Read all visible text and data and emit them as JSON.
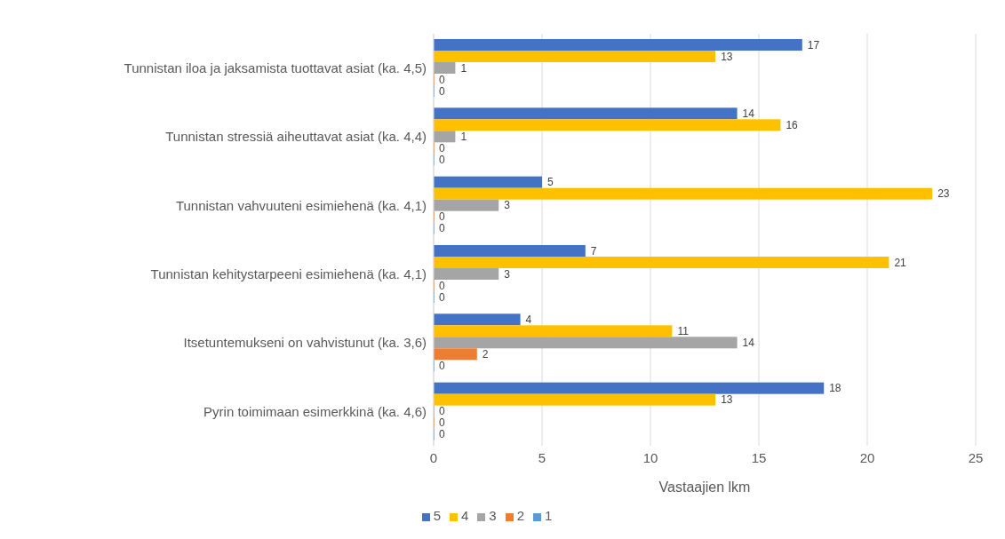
{
  "chart_data": {
    "type": "bar",
    "orientation": "horizontal",
    "xlabel": "Vastaajien lkm",
    "categories": [
      "Tunnistan iloa ja jaksamista tuottavat asiat (ka. 4,5)",
      "Tunnistan stressiä aiheuttavat asiat (ka. 4,4)",
      "Tunnistan vahvuuteni esimiehenä (ka. 4,1)",
      "Tunnistan kehitystarpeeni esimiehenä (ka. 4,1)",
      "Itsetuntemukseni on vahvistunut (ka. 3,6)",
      "Pyrin toimimaan esimerkkinä (ka. 4,6)"
    ],
    "series": [
      {
        "name": "5",
        "color": "#4472c4",
        "values": [
          17,
          14,
          5,
          7,
          4,
          18
        ]
      },
      {
        "name": "4",
        "color": "#ffc000",
        "values": [
          13,
          16,
          23,
          21,
          11,
          13
        ]
      },
      {
        "name": "3",
        "color": "#a5a5a5",
        "values": [
          1,
          1,
          3,
          3,
          14,
          0
        ]
      },
      {
        "name": "2",
        "color": "#ed7d31",
        "values": [
          0,
          0,
          0,
          0,
          2,
          0
        ]
      },
      {
        "name": "1",
        "color": "#5b9bd5",
        "values": [
          0,
          0,
          0,
          0,
          0,
          0
        ]
      }
    ],
    "xlim": [
      0,
      25
    ],
    "xticks": [
      0,
      5,
      10,
      15,
      20,
      25
    ],
    "grid": "x",
    "legend": "bottom",
    "data_labels": true
  }
}
